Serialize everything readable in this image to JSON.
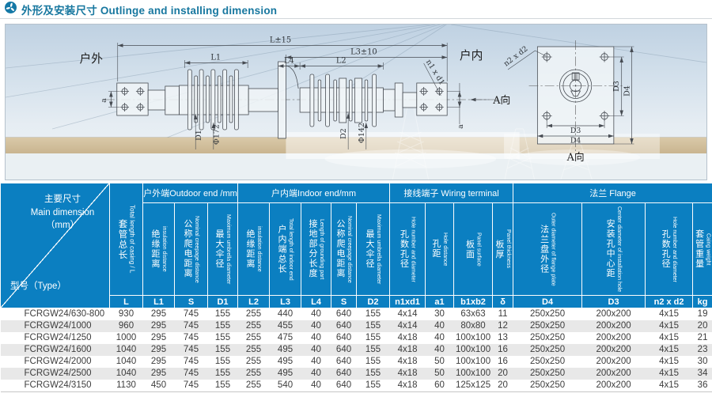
{
  "page": {
    "title": "外形及安装尺寸 Outlinge and installing dimension"
  },
  "colors": {
    "header_blue": "#0b7fc1",
    "row_alt": "#e8e8e8",
    "title": "#17779f",
    "icon_blue": "#1478a6"
  },
  "drawing": {
    "outdoor": "户外",
    "indoor": "户内",
    "view_a": "A向",
    "dim_l": "L±15",
    "dim_l3": "L3±10",
    "dim_l1": "L1",
    "dim_l4": "L4",
    "dim_l2": "L2",
    "dim_a": "a",
    "dim_d1": "D1",
    "dim_phi1": "Φ172",
    "dim_d2": "D2",
    "dim_phi2": "Φ142",
    "dim_d3": "D3",
    "dim_d4": "D4",
    "holes_terminal": "n1 x d1",
    "holes_flange": "n2 x d2"
  },
  "table": {
    "corner": {
      "zh": "主要尺寸",
      "en": "Main dimension",
      "unit": "（mm）",
      "type_label": "型号（Type）"
    },
    "total_col": {
      "zh": "套管总长",
      "en": "Total length of casing / L"
    },
    "groups": [
      {
        "label": "户外端Outdoor end /mm"
      },
      {
        "label": "户内端Indoor end/mm"
      },
      {
        "label": "接线端子 Wiring terminal"
      },
      {
        "label": "法兰 Flange"
      }
    ],
    "columns": [
      {
        "zh": "绝缘距离",
        "en": "insulation distance"
      },
      {
        "zh": "公称爬电距离",
        "en": "Nominal creepage distance"
      },
      {
        "zh": "最大伞径",
        "en": "Maximum umbrella diameter"
      },
      {
        "zh": "绝缘距离",
        "en": "insulation distance"
      },
      {
        "zh": "户内端总长",
        "en": "Total length of indoor end"
      },
      {
        "zh": "接地部分长度",
        "en": "Length of grounding part"
      },
      {
        "zh": "公称爬电距离",
        "en": "Nominal creepage distance"
      },
      {
        "zh": "最大伞径",
        "en": "Maximum umbrella diameter"
      },
      {
        "zh": "孔数孔径",
        "en": "Hole number and diameter"
      },
      {
        "zh": "孔距",
        "en": "Hole distance"
      },
      {
        "zh": "板面",
        "en": "Panel surface"
      },
      {
        "zh": "板厚",
        "en": "Panel thickness"
      },
      {
        "zh": "法兰盘外径",
        "en": "Outer diameter of flange plate"
      },
      {
        "zh": "安装孔中心距",
        "en": "Center diameter of installation hole"
      },
      {
        "zh": "孔数孔径",
        "en": "Hole number and diameter"
      },
      {
        "zh": "套管重量",
        "en": "Caing weight"
      }
    ],
    "units": [
      "L",
      "L1",
      "S",
      "D1",
      "L2",
      "L3",
      "L4",
      "S",
      "D2",
      "n1xd1",
      "a1",
      "b1xb2",
      "δ",
      "D4",
      "D3",
      "n2 x d2",
      "kg"
    ],
    "rows": [
      {
        "type": "FCRGW24/630-800",
        "values": [
          "930",
          "295",
          "745",
          "155",
          "255",
          "440",
          "40",
          "640",
          "155",
          "4x14",
          "30",
          "63x63",
          "11",
          "250x250",
          "200x200",
          "4x15",
          "19"
        ]
      },
      {
        "type": "FCRGW24/1000",
        "values": [
          "960",
          "295",
          "745",
          "155",
          "255",
          "455",
          "40",
          "640",
          "155",
          "4x14",
          "40",
          "80x80",
          "12",
          "250x250",
          "200x200",
          "4x15",
          "20"
        ]
      },
      {
        "type": "FCRGW24/1250",
        "values": [
          "1000",
          "295",
          "745",
          "155",
          "255",
          "475",
          "40",
          "640",
          "155",
          "4x18",
          "40",
          "100x100",
          "13",
          "250x250",
          "200x200",
          "4x15",
          "21"
        ]
      },
      {
        "type": "FCRGW24/1600",
        "values": [
          "1040",
          "295",
          "745",
          "155",
          "255",
          "495",
          "40",
          "640",
          "155",
          "4x18",
          "40",
          "100x100",
          "16",
          "250x250",
          "200x200",
          "4x15",
          "23"
        ]
      },
      {
        "type": "FCRGW24/2000",
        "values": [
          "1040",
          "295",
          "745",
          "155",
          "255",
          "495",
          "40",
          "640",
          "155",
          "4x18",
          "50",
          "100x100",
          "16",
          "250x250",
          "200x200",
          "4x15",
          "30"
        ]
      },
      {
        "type": "FCRGW24/2500",
        "values": [
          "1040",
          "295",
          "745",
          "155",
          "255",
          "495",
          "40",
          "640",
          "155",
          "4x18",
          "50",
          "100x100",
          "20",
          "250x250",
          "200x200",
          "4x15",
          "34"
        ]
      },
      {
        "type": "FCRGW24/3150",
        "values": [
          "1130",
          "450",
          "745",
          "155",
          "255",
          "540",
          "40",
          "640",
          "155",
          "4x18",
          "60",
          "125x125",
          "20",
          "250x250",
          "200x200",
          "4x15",
          "36"
        ]
      }
    ]
  }
}
